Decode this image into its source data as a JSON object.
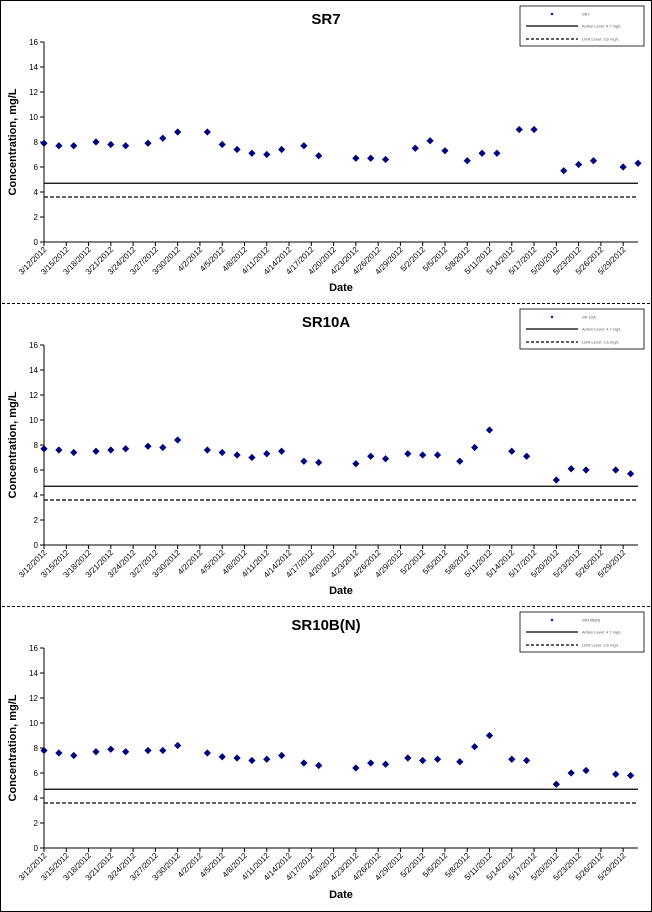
{
  "chart_data": [
    {
      "type": "scatter",
      "title": "SR7",
      "xlabel": "Date",
      "ylabel": "Concentration, mg/L",
      "ylim": [
        0,
        16
      ],
      "yticks": [
        0,
        2,
        4,
        6,
        8,
        10,
        12,
        14,
        16
      ],
      "xlim": [
        "3/12/2012",
        "5/31/2012"
      ],
      "xticks": [
        "3/12/2012",
        "3/15/2012",
        "3/18/2012",
        "3/21/2012",
        "3/24/2012",
        "3/27/2012",
        "3/30/2012",
        "4/2/2012",
        "4/5/2012",
        "4/8/2012",
        "4/11/2012",
        "4/14/2012",
        "4/17/2012",
        "4/20/2012",
        "4/23/2012",
        "4/26/2012",
        "4/29/2012",
        "5/2/2012",
        "5/5/2012",
        "5/8/2012",
        "5/11/2012",
        "5/14/2012",
        "5/17/2012",
        "5/20/2012",
        "5/23/2012",
        "5/26/2012",
        "5/29/2012"
      ],
      "grid": false,
      "legend_position": "top-right",
      "legend": [
        "SR7",
        "Action Level: 4.7 mg/L",
        "Limit Level: 3.6 mg/L"
      ],
      "series": [
        {
          "name": "SR7",
          "marker": "diamond",
          "color": "#00007f",
          "points": [
            [
              "3/12/2012",
              7.9
            ],
            [
              "3/14/2012",
              7.7
            ],
            [
              "3/16/2012",
              7.7
            ],
            [
              "3/19/2012",
              8.0
            ],
            [
              "3/21/2012",
              7.8
            ],
            [
              "3/23/2012",
              7.7
            ],
            [
              "3/26/2012",
              7.9
            ],
            [
              "3/28/2012",
              8.3
            ],
            [
              "3/30/2012",
              8.8
            ],
            [
              "4/3/2012",
              8.8
            ],
            [
              "4/5/2012",
              7.8
            ],
            [
              "4/7/2012",
              7.4
            ],
            [
              "4/9/2012",
              7.1
            ],
            [
              "4/11/2012",
              7.0
            ],
            [
              "4/13/2012",
              7.4
            ],
            [
              "4/16/2012",
              7.7
            ],
            [
              "4/18/2012",
              6.9
            ],
            [
              "4/23/2012",
              6.7
            ],
            [
              "4/25/2012",
              6.7
            ],
            [
              "4/27/2012",
              6.6
            ],
            [
              "5/1/2012",
              7.5
            ],
            [
              "5/3/2012",
              8.1
            ],
            [
              "5/5/2012",
              7.3
            ],
            [
              "5/8/2012",
              6.5
            ],
            [
              "5/10/2012",
              7.1
            ],
            [
              "5/12/2012",
              7.1
            ],
            [
              "5/15/2012",
              9.0
            ],
            [
              "5/17/2012",
              9.0
            ],
            [
              "5/21/2012",
              5.7
            ],
            [
              "5/23/2012",
              6.2
            ],
            [
              "5/25/2012",
              6.5
            ],
            [
              "5/29/2012",
              6.0
            ],
            [
              "5/31/2012",
              6.3
            ]
          ]
        },
        {
          "name": "Action Level: 4.7 mg/L",
          "type": "hline",
          "value": 4.7,
          "line_style": "solid"
        },
        {
          "name": "Limit Level: 3.6 mg/L",
          "type": "hline",
          "value": 3.6,
          "line_style": "dashed"
        }
      ]
    },
    {
      "type": "scatter",
      "title": "SR10A",
      "xlabel": "Date",
      "ylabel": "Concentration, mg/L",
      "ylim": [
        0,
        16
      ],
      "yticks": [
        0,
        2,
        4,
        6,
        8,
        10,
        12,
        14,
        16
      ],
      "xlim": [
        "3/12/2012",
        "5/31/2012"
      ],
      "xticks": [
        "3/12/2012",
        "3/15/2012",
        "3/18/2012",
        "3/21/2012",
        "3/24/2012",
        "3/27/2012",
        "3/30/2012",
        "4/2/2012",
        "4/5/2012",
        "4/8/2012",
        "4/11/2012",
        "4/14/2012",
        "4/17/2012",
        "4/20/2012",
        "4/23/2012",
        "4/26/2012",
        "4/29/2012",
        "5/2/2012",
        "5/5/2012",
        "5/8/2012",
        "5/11/2012",
        "5/14/2012",
        "5/17/2012",
        "5/20/2012",
        "5/23/2012",
        "5/26/2012",
        "5/29/2012"
      ],
      "grid": false,
      "legend_position": "top-right",
      "legend": [
        "SR 10A",
        "Action Level: 4.7 mg/L",
        "Limit Level: 3.6 mg/L"
      ],
      "series": [
        {
          "name": "SR 10A",
          "marker": "diamond",
          "color": "#00007f",
          "points": [
            [
              "3/12/2012",
              7.7
            ],
            [
              "3/14/2012",
              7.6
            ],
            [
              "3/16/2012",
              7.4
            ],
            [
              "3/19/2012",
              7.5
            ],
            [
              "3/21/2012",
              7.6
            ],
            [
              "3/23/2012",
              7.7
            ],
            [
              "3/26/2012",
              7.9
            ],
            [
              "3/28/2012",
              7.8
            ],
            [
              "3/30/2012",
              8.4
            ],
            [
              "4/3/2012",
              7.6
            ],
            [
              "4/5/2012",
              7.4
            ],
            [
              "4/7/2012",
              7.2
            ],
            [
              "4/9/2012",
              7.0
            ],
            [
              "4/11/2012",
              7.3
            ],
            [
              "4/13/2012",
              7.5
            ],
            [
              "4/16/2012",
              6.7
            ],
            [
              "4/18/2012",
              6.6
            ],
            [
              "4/23/2012",
              6.5
            ],
            [
              "4/25/2012",
              7.1
            ],
            [
              "4/27/2012",
              6.9
            ],
            [
              "4/30/2012",
              7.3
            ],
            [
              "5/2/2012",
              7.2
            ],
            [
              "5/4/2012",
              7.2
            ],
            [
              "5/7/2012",
              6.7
            ],
            [
              "5/9/2012",
              7.8
            ],
            [
              "5/11/2012",
              9.2
            ],
            [
              "5/14/2012",
              7.5
            ],
            [
              "5/16/2012",
              7.1
            ],
            [
              "5/20/2012",
              5.2
            ],
            [
              "5/22/2012",
              6.1
            ],
            [
              "5/24/2012",
              6.0
            ],
            [
              "5/28/2012",
              6.0
            ],
            [
              "5/30/2012",
              5.7
            ]
          ]
        },
        {
          "name": "Action Level: 4.7 mg/L",
          "type": "hline",
          "value": 4.7,
          "line_style": "solid"
        },
        {
          "name": "Limit Level: 3.6 mg/L",
          "type": "hline",
          "value": 3.6,
          "line_style": "dashed"
        }
      ]
    },
    {
      "type": "scatter",
      "title": "SR10B(N)",
      "xlabel": "Date",
      "ylabel": "Concentration, mg/L",
      "ylim": [
        0,
        16
      ],
      "yticks": [
        0,
        2,
        4,
        6,
        8,
        10,
        12,
        14,
        16
      ],
      "xlim": [
        "3/12/2012",
        "5/31/2012"
      ],
      "xticks": [
        "3/12/2012",
        "3/15/2012",
        "3/18/2012",
        "3/21/2012",
        "3/24/2012",
        "3/27/2012",
        "3/30/2012",
        "4/2/2012",
        "4/5/2012",
        "4/8/2012",
        "4/11/2012",
        "4/14/2012",
        "4/17/2012",
        "4/20/2012",
        "4/23/2012",
        "4/26/2012",
        "4/29/2012",
        "5/2/2012",
        "5/5/2012",
        "5/8/2012",
        "5/11/2012",
        "5/14/2012",
        "5/17/2012",
        "5/20/2012",
        "5/23/2012",
        "5/26/2012",
        "5/29/2012"
      ],
      "grid": false,
      "legend_position": "top-right",
      "legend": [
        "SR10B(N)",
        "Action Level: 4.7 mg/L",
        "Limit Level: 3.6 mg/L"
      ],
      "series": [
        {
          "name": "SR10B(N)",
          "marker": "diamond",
          "color": "#00007f",
          "points": [
            [
              "3/12/2012",
              7.8
            ],
            [
              "3/14/2012",
              7.6
            ],
            [
              "3/16/2012",
              7.4
            ],
            [
              "3/19/2012",
              7.7
            ],
            [
              "3/21/2012",
              7.9
            ],
            [
              "3/23/2012",
              7.7
            ],
            [
              "3/26/2012",
              7.8
            ],
            [
              "3/28/2012",
              7.8
            ],
            [
              "3/30/2012",
              8.2
            ],
            [
              "4/3/2012",
              7.6
            ],
            [
              "4/5/2012",
              7.3
            ],
            [
              "4/7/2012",
              7.2
            ],
            [
              "4/9/2012",
              7.0
            ],
            [
              "4/11/2012",
              7.1
            ],
            [
              "4/13/2012",
              7.4
            ],
            [
              "4/16/2012",
              6.8
            ],
            [
              "4/18/2012",
              6.6
            ],
            [
              "4/23/2012",
              6.4
            ],
            [
              "4/25/2012",
              6.8
            ],
            [
              "4/27/2012",
              6.7
            ],
            [
              "4/30/2012",
              7.2
            ],
            [
              "5/2/2012",
              7.0
            ],
            [
              "5/4/2012",
              7.1
            ],
            [
              "5/7/2012",
              6.9
            ],
            [
              "5/9/2012",
              8.1
            ],
            [
              "5/11/2012",
              9.0
            ],
            [
              "5/14/2012",
              7.1
            ],
            [
              "5/16/2012",
              7.0
            ],
            [
              "5/20/2012",
              5.1
            ],
            [
              "5/22/2012",
              6.0
            ],
            [
              "5/24/2012",
              6.2
            ],
            [
              "5/28/2012",
              5.9
            ],
            [
              "5/30/2012",
              5.8
            ]
          ]
        },
        {
          "name": "Action Level: 4.7 mg/L",
          "type": "hline",
          "value": 4.7,
          "line_style": "solid"
        },
        {
          "name": "Limit Level: 3.6 mg/L",
          "type": "hline",
          "value": 3.6,
          "line_style": "dashed"
        }
      ]
    }
  ]
}
